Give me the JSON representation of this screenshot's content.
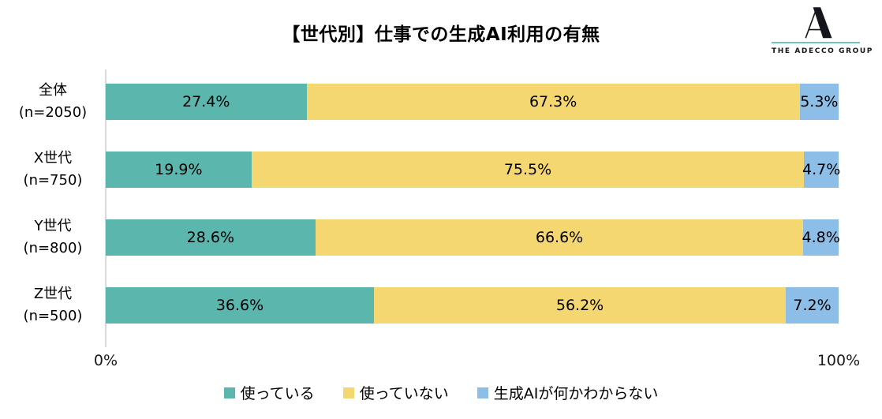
{
  "title": "【世代別】仕事での生成AI利用の有無",
  "logo": {
    "brand": "THE ADECCO GROUP",
    "accent_color": "#6cc5c0",
    "mark_color": "#15151d"
  },
  "chart_data": {
    "type": "bar",
    "orientation": "horizontal_stacked",
    "title": "【世代別】仕事での生成AI利用の有無",
    "categories": [
      {
        "label": "全体",
        "sub": "(n=2050)"
      },
      {
        "label": "X世代",
        "sub": "(n=750)"
      },
      {
        "label": "Y世代",
        "sub": "(n=800)"
      },
      {
        "label": "Z世代",
        "sub": "(n=500)"
      }
    ],
    "series": [
      {
        "name": "使っている",
        "color": "#5bb7ae",
        "values": [
          27.4,
          19.9,
          28.6,
          36.6
        ]
      },
      {
        "name": "使っていない",
        "color": "#f4d771",
        "values": [
          67.3,
          75.5,
          66.6,
          56.2
        ]
      },
      {
        "name": "生成AIが何かわからない",
        "color": "#8cbee7",
        "values": [
          5.3,
          4.7,
          4.8,
          7.2
        ]
      }
    ],
    "value_suffix": "%",
    "value_decimals": 1,
    "xlim": [
      0,
      100
    ],
    "x_ticks": [
      "0%",
      "100%"
    ],
    "grid": false,
    "legend_position": "bottom",
    "axis_line_color": "#d9d9d9",
    "label_color": "#000000"
  }
}
